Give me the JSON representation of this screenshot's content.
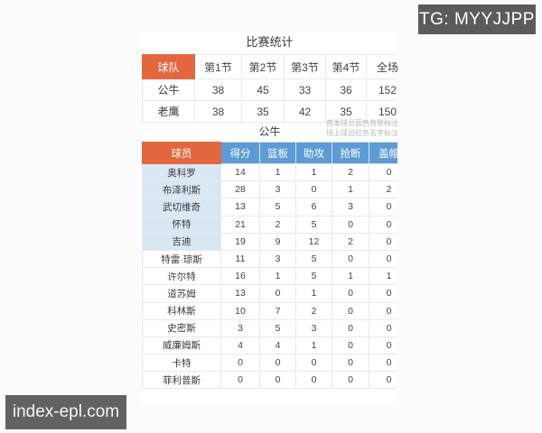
{
  "watermarks": {
    "tg_badge": "TG: MYYJJPP",
    "site_badge": "index-epl.com"
  },
  "colors": {
    "accent_orange": "#e2673f",
    "header_blue": "#5c9bd6",
    "starter_row_blue": "#d9e6f4",
    "badge_gray": "#5b5b5b"
  },
  "match_stats": {
    "title": "比赛统计",
    "columns": [
      "球队",
      "第1节",
      "第2节",
      "第3节",
      "第4节",
      "全场"
    ],
    "rows": [
      {
        "team": "公牛",
        "values": [
          "38",
          "45",
          "33",
          "36",
          "152"
        ]
      },
      {
        "team": "老鹰",
        "values": [
          "38",
          "35",
          "42",
          "35",
          "150"
        ]
      }
    ]
  },
  "team_section": {
    "team_name": "公牛",
    "note_line1": "首发球员蓝色背景标注",
    "note_line2": "场上球员红色名字标注"
  },
  "player_stats": {
    "columns": [
      "球员",
      "得分",
      "篮板",
      "助攻",
      "抢断",
      "盖帽"
    ],
    "players": [
      {
        "name": "奥科罗",
        "starter": true,
        "values": [
          "14",
          "1",
          "1",
          "2",
          "0"
        ]
      },
      {
        "name": "布泽利斯",
        "starter": true,
        "values": [
          "28",
          "3",
          "0",
          "1",
          "2"
        ]
      },
      {
        "name": "武切维奇",
        "starter": true,
        "values": [
          "13",
          "5",
          "6",
          "3",
          "0"
        ]
      },
      {
        "name": "怀特",
        "starter": true,
        "values": [
          "21",
          "2",
          "5",
          "0",
          "0"
        ]
      },
      {
        "name": "吉迪",
        "starter": true,
        "values": [
          "19",
          "9",
          "12",
          "2",
          "0"
        ]
      },
      {
        "name": "特雷·琼斯",
        "starter": false,
        "values": [
          "11",
          "3",
          "5",
          "0",
          "0"
        ]
      },
      {
        "name": "许尔特",
        "starter": false,
        "values": [
          "16",
          "1",
          "5",
          "1",
          "1"
        ]
      },
      {
        "name": "道苏姆",
        "starter": false,
        "values": [
          "13",
          "0",
          "1",
          "0",
          "0"
        ]
      },
      {
        "name": "科林斯",
        "starter": false,
        "values": [
          "10",
          "7",
          "2",
          "0",
          "0"
        ]
      },
      {
        "name": "史密斯",
        "starter": false,
        "values": [
          "3",
          "5",
          "3",
          "0",
          "0"
        ]
      },
      {
        "name": "威廉姆斯",
        "starter": false,
        "values": [
          "4",
          "4",
          "1",
          "0",
          "0"
        ]
      },
      {
        "name": "卡特",
        "starter": false,
        "values": [
          "0",
          "0",
          "0",
          "0",
          "0"
        ]
      },
      {
        "name": "菲利普斯",
        "starter": false,
        "values": [
          "0",
          "0",
          "0",
          "0",
          "0"
        ]
      }
    ]
  }
}
